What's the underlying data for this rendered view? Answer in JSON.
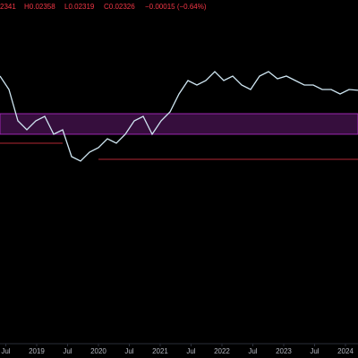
{
  "chart_data": {
    "type": "line",
    "header": {
      "open": "2341",
      "high": "H0.02358",
      "low": "L0.02319",
      "close": "C0.02326",
      "change": "−0.00015 (−0.64%)"
    },
    "values": [
      0.02458,
      0.02333,
      0.02042,
      0.01958,
      0.02042,
      0.02083,
      0.01917,
      0.01958,
      0.01708,
      0.01667,
      0.0175,
      0.01792,
      0.01875,
      0.01833,
      0.01917,
      0.02042,
      0.02083,
      0.01917,
      0.02042,
      0.02125,
      0.02292,
      0.02417,
      0.02375,
      0.02417,
      0.025,
      0.02417,
      0.02458,
      0.02375,
      0.02333,
      0.02458,
      0.025,
      0.02433,
      0.02458,
      0.02417,
      0.02375,
      0.02375,
      0.02333,
      0.02333,
      0.02292,
      0.02333,
      0.02326
    ],
    "color": "#cfe6f2",
    "ylim": [
      0,
      0.03
    ],
    "xlim": [
      2018.406,
      2024.203
    ],
    "xticks": [
      {
        "value": 2018.5,
        "label": "Jul"
      },
      {
        "value": 2019,
        "label": "2019"
      },
      {
        "value": 2019.5,
        "label": "Jul"
      },
      {
        "value": 2020,
        "label": "2020"
      },
      {
        "value": 2020.5,
        "label": "Jul"
      },
      {
        "value": 2021,
        "label": "2021"
      },
      {
        "value": 2021.5,
        "label": "Jul"
      },
      {
        "value": 2022,
        "label": "2022"
      },
      {
        "value": 2022.5,
        "label": "Jul"
      },
      {
        "value": 2023,
        "label": "2023"
      },
      {
        "value": 2023.5,
        "label": "Jul"
      },
      {
        "value": 2024,
        "label": "2024"
      }
    ],
    "zone": {
      "low": 0.01917,
      "high": 0.02108,
      "color": "#9c27b0"
    },
    "levels": [
      {
        "value": 0.01833,
        "color": "#b22833"
      },
      {
        "value": 0.01683,
        "color": "#b22833"
      }
    ]
  }
}
